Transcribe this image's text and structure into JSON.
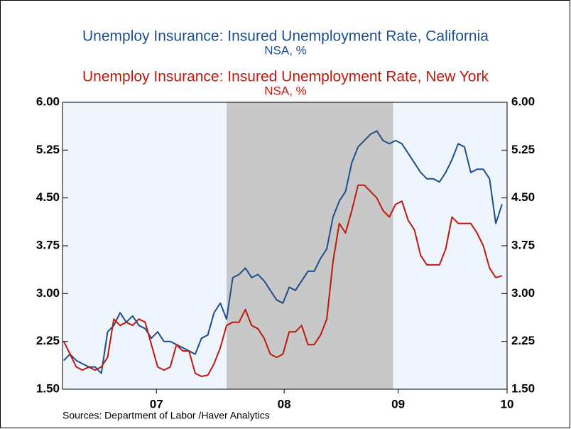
{
  "chart_data": {
    "type": "line",
    "titles": [
      {
        "title": "Unemploy Insurance: Insured Unemployment Rate, California",
        "subtitle": "NSA, %"
      },
      {
        "title": "Unemploy Insurance: Insured Unemployment Rate, New York",
        "subtitle": "NSA, %"
      }
    ],
    "source": "Sources:  Department of Labor /Haver Analytics",
    "x": [
      2006.76,
      2006.81,
      2006.86,
      2006.91,
      2006.96,
      2007.01,
      2007.06,
      2007.11,
      2007.16,
      2007.21,
      2007.26,
      2007.31,
      2007.36,
      2007.41,
      2007.46,
      2007.51,
      2007.56,
      2007.61,
      2007.66,
      2007.71,
      2007.76,
      2007.81,
      2007.86,
      2007.91,
      2007.96,
      2008.01,
      2008.06,
      2008.11,
      2008.16,
      2008.21,
      2008.26,
      2008.31,
      2008.36,
      2008.41,
      2008.46,
      2008.51,
      2008.56,
      2008.61,
      2008.66,
      2008.71,
      2008.76,
      2008.81,
      2008.86,
      2008.91,
      2008.96,
      2009.01,
      2009.06,
      2009.11,
      2009.16,
      2009.21,
      2009.26,
      2009.31,
      2009.36,
      2009.41,
      2009.46,
      2009.51,
      2009.56,
      2009.61,
      2009.66,
      2009.71,
      2009.76,
      2009.81,
      2009.86,
      2009.91,
      2009.96,
      2010.01,
      2010.06,
      2010.11,
      2010.16,
      2010.21,
      2010.26
    ],
    "series": [
      {
        "name": "California",
        "color": "#1f4e8c",
        "values": [
          1.95,
          2.05,
          1.95,
          1.9,
          1.85,
          1.85,
          1.75,
          2.4,
          2.5,
          2.7,
          2.55,
          2.65,
          2.5,
          2.45,
          2.3,
          2.4,
          2.25,
          2.25,
          2.2,
          2.15,
          2.1,
          2.05,
          2.3,
          2.35,
          2.7,
          2.85,
          2.6,
          3.25,
          3.3,
          3.4,
          3.25,
          3.3,
          3.2,
          3.05,
          2.9,
          2.85,
          3.1,
          3.05,
          3.2,
          3.35,
          3.35,
          3.55,
          3.7,
          4.2,
          4.45,
          4.6,
          5.05,
          5.3,
          5.4,
          5.5,
          5.55,
          5.4,
          5.35,
          5.4,
          5.35,
          5.2,
          5.05,
          4.9,
          4.8,
          4.8,
          4.75,
          4.9,
          5.1,
          5.35,
          5.3,
          4.9,
          4.95,
          4.95,
          4.8,
          4.1,
          4.4
        ]
      },
      {
        "name": "New York",
        "color": "#c0180c",
        "values": [
          2.25,
          2.05,
          1.85,
          1.8,
          1.85,
          1.8,
          1.85,
          2.0,
          2.6,
          2.5,
          2.55,
          2.5,
          2.6,
          2.55,
          2.2,
          1.85,
          1.8,
          1.85,
          2.2,
          2.1,
          2.1,
          1.75,
          1.7,
          1.72,
          1.9,
          2.15,
          2.5,
          2.55,
          2.55,
          2.75,
          2.5,
          2.45,
          2.3,
          2.05,
          2.0,
          2.05,
          2.4,
          2.4,
          2.5,
          2.2,
          2.2,
          2.35,
          2.6,
          3.5,
          4.1,
          3.95,
          4.3,
          4.7,
          4.7,
          4.6,
          4.5,
          4.3,
          4.2,
          4.4,
          4.45,
          4.15,
          4.0,
          3.6,
          3.45,
          3.45,
          3.45,
          3.7,
          4.2,
          4.1,
          4.1,
          4.1,
          3.95,
          3.75,
          3.4,
          3.25,
          3.28
        ]
      }
    ],
    "shading": [
      2008.06,
      2009.39
    ],
    "shading_color": "#c8c8c8",
    "background": "#eef5fd",
    "xlim": [
      2006.75,
      2010.3
    ],
    "xticks": [
      {
        "value": 2007.5,
        "label": "07"
      },
      {
        "value": 2008.52,
        "label": "08"
      },
      {
        "value": 2009.43,
        "label": "09"
      },
      {
        "value": 2010.3,
        "label": "10"
      }
    ],
    "ylim": [
      1.5,
      6.0
    ],
    "yticks": [
      {
        "value": 1.5,
        "label": "1.50"
      },
      {
        "value": 2.25,
        "label": "2.25"
      },
      {
        "value": 3.0,
        "label": "3.00"
      },
      {
        "value": 3.75,
        "label": "3.75"
      },
      {
        "value": 4.5,
        "label": "4.50"
      },
      {
        "value": 5.25,
        "label": "5.25"
      },
      {
        "value": 6.0,
        "label": "6.00"
      }
    ],
    "y2lim": [
      1.5,
      6.0
    ],
    "y2ticks": [
      {
        "value": 1.5,
        "label": "1.50"
      },
      {
        "value": 2.25,
        "label": "2.25"
      },
      {
        "value": 3.0,
        "label": "3.00"
      },
      {
        "value": 3.75,
        "label": "3.75"
      },
      {
        "value": 4.5,
        "label": "4.50"
      },
      {
        "value": 5.25,
        "label": "5.25"
      },
      {
        "value": 6.0,
        "label": "6.00"
      }
    ]
  }
}
